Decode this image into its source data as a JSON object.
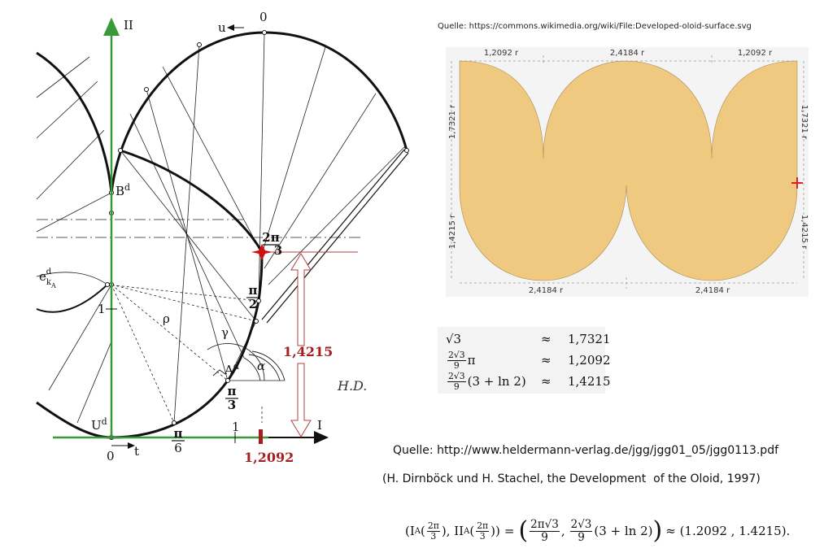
{
  "diagram": {
    "axis_ii": "II",
    "axis_i": "I",
    "zero_top": "0",
    "u": "u",
    "b": {
      "base": "B",
      "sup": "d"
    },
    "two_pi_3": {
      "num": "2π",
      "den": "3"
    },
    "pi_2": {
      "num": "π",
      "den": "2"
    },
    "gamma": "γ",
    "alpha": "α",
    "rho": "ρ",
    "a": {
      "base": "A",
      "sup": "d"
    },
    "pi_3": {
      "num": "π",
      "den": "3"
    },
    "pi_6": {
      "num": "π",
      "den": "6"
    },
    "u_d": {
      "base": "U",
      "sup": "d"
    },
    "zero_origin": "0",
    "t": "t",
    "one_x": "1",
    "one_y": "1",
    "e": {
      "base": "e",
      "sub": "k",
      "subsub": "A",
      "sup": "d"
    },
    "height_value": "1,4215",
    "width_value": "1,2092",
    "signature": "H.D."
  },
  "source_1": "Quelle: https://commons.wikimedia.org/wiki/File:Developed-oloid-surface.svg",
  "oloid": {
    "top": [
      "1,2092 r",
      "2,4184 r",
      "1,2092 r"
    ],
    "left": [
      "1,7321 r",
      "1,4215 r"
    ],
    "right": [
      "1,7321 r",
      "1,4215 r"
    ],
    "bottom": [
      "2,4184 r",
      "2,4184 r"
    ]
  },
  "constants": {
    "rows": [
      {
        "expr": "√3",
        "approx": "≈",
        "value": "1,7321"
      },
      {
        "frac_num": "2√3",
        "frac_den": "9",
        "factor": "π",
        "approx": "≈",
        "value": "1,2092"
      },
      {
        "frac_num": "2√3",
        "frac_den": "9",
        "factor": "(3 + ln 2)",
        "approx": "≈",
        "value": "1,4215"
      }
    ]
  },
  "source_2": "Quelle: http://www.heldermann-verlag.de/jgg/jgg01_05/jgg0113.pdf",
  "citation": "(H. Dirnböck und H. Stachel, the Development  of the Oloid, 1997)",
  "formula": {
    "p1": "(I",
    "s1": "A",
    "o1": "(",
    "f1n": "2π",
    "f1d": "3",
    "c1": ")",
    "p2": ", II",
    "s2": "A",
    "o2": "(",
    "f2n": "2π",
    "f2d": "3",
    "c2": "))",
    "p3": "=",
    "o3": "(",
    "f3n": "2π√3",
    "f3d": "9",
    "p4": ",",
    "f4n": "2√3",
    "f4d": "9",
    "p5": "(3 + ln 2)",
    "c3": ")",
    "p6": "≈ (1.2092 , 1.4215)."
  }
}
